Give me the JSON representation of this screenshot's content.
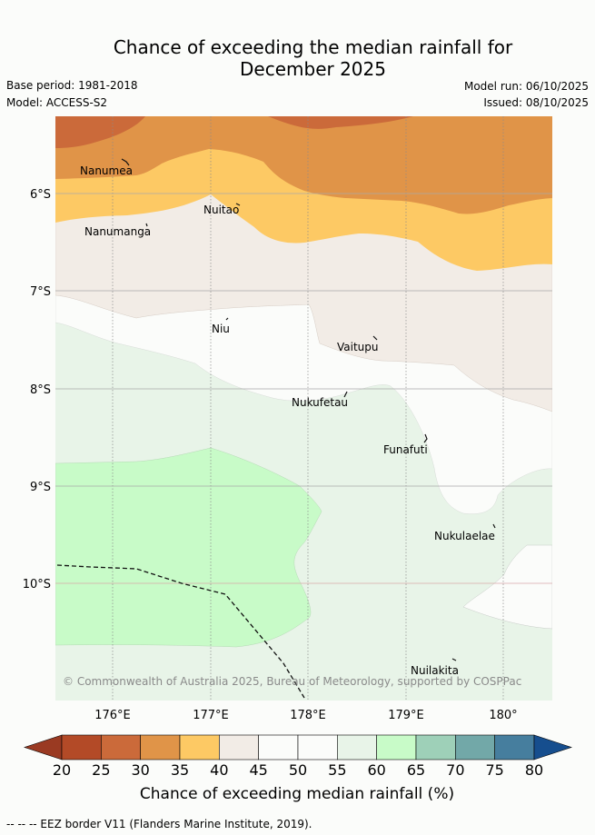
{
  "header": {
    "title_line1": "Chance of exceeding the median rainfall for",
    "title_line2": "December 2025",
    "base_period": "Base period: 1981-2018",
    "model": "Model: ACCESS-S2",
    "model_run": "Model run: 06/10/2025",
    "issued": "Issued: 08/10/2025"
  },
  "map": {
    "lat_labels": [
      "6°S",
      "7°S",
      "8°S",
      "9°S",
      "10°S"
    ],
    "lon_labels": [
      "176°E",
      "177°E",
      "178°E",
      "179°E",
      "180°"
    ],
    "places": [
      "Nanumea",
      "Nanumanga",
      "Nuitao",
      "Niu",
      "Vaitupu",
      "Nukufetau",
      "Funafuti",
      "Nukulaelae",
      "Nuilakita"
    ],
    "credit": "© Commonwealth of Australia 2025, Bureau of Meteorology, supported by COSPPac"
  },
  "colorbar": {
    "labels": [
      "20",
      "25",
      "30",
      "35",
      "40",
      "45",
      "50",
      "55",
      "60",
      "65",
      "70",
      "75",
      "80"
    ],
    "colors": [
      "#b34a27",
      "#cb6a3a",
      "#e09448",
      "#fdc964",
      "#f2ece6",
      "#fbfcfa",
      "#fbfcfa",
      "#e8f4e8",
      "#c8fbc8",
      "#9ed0b8",
      "#72a8a8",
      "#467e9e"
    ],
    "under_color": "#9a3a22",
    "over_color": "#164e8e",
    "title": "Chance of exceeding median rainfall (%)"
  },
  "footer": {
    "legend": "-- -- -- EEZ border V11 (Flanders Marine Institute, 2019)."
  }
}
